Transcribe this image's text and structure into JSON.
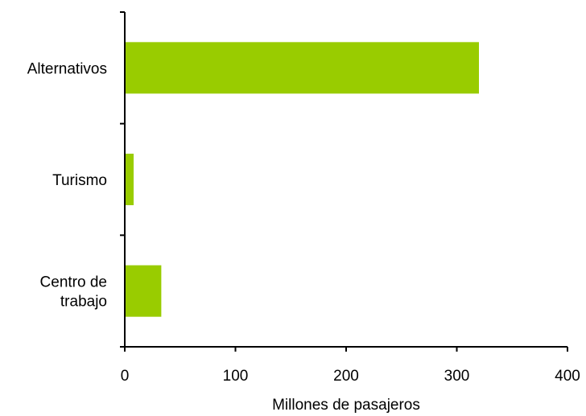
{
  "chart_data": {
    "type": "bar",
    "orientation": "horizontal",
    "categories": [
      "Alternativos",
      "Turismo",
      "Centro de\ntrabajo"
    ],
    "values": [
      320,
      8,
      33
    ],
    "xlabel": "Millones de pasajeros",
    "ylabel": "",
    "xlim": [
      0,
      400
    ],
    "x_ticks": [
      0,
      100,
      200,
      300,
      400
    ],
    "grid": false,
    "legend": "none",
    "bar_color": "#99cc00"
  }
}
